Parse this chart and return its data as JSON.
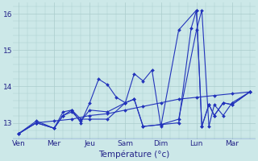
{
  "xlabel": "Température (°c)",
  "background_color": "#cce8e8",
  "grid_color": "#aacccc",
  "line_color": "#2233bb",
  "x_tick_labels": [
    "Ven",
    "Mer",
    "Jeu",
    "Sam",
    "Dim",
    "Lun",
    "Mar"
  ],
  "x_tick_positions": [
    0,
    2,
    4,
    6,
    8,
    10,
    12
  ],
  "xlim": [
    -0.3,
    13.3
  ],
  "ylim": [
    12.55,
    16.3
  ],
  "yticks": [
    13,
    14,
    15,
    16
  ],
  "series": [
    {
      "x": [
        0,
        1,
        2,
        3,
        4,
        5,
        6,
        7,
        8,
        9,
        10,
        11,
        12,
        13
      ],
      "y": [
        12.7,
        13.0,
        13.05,
        13.1,
        13.2,
        13.25,
        13.35,
        13.45,
        13.55,
        13.65,
        13.7,
        13.75,
        13.8,
        13.85
      ]
    },
    {
      "x": [
        0,
        1,
        2,
        2.5,
        3,
        3.5,
        4,
        5,
        6,
        6.5,
        7,
        8,
        9,
        10,
        10.3,
        10.7,
        11,
        11.5,
        12,
        13
      ],
      "y": [
        12.7,
        13.0,
        12.85,
        13.2,
        13.35,
        13.1,
        13.1,
        13.1,
        13.55,
        13.65,
        12.9,
        12.95,
        13.1,
        15.55,
        16.1,
        12.9,
        13.5,
        13.2,
        13.55,
        13.85
      ]
    },
    {
      "x": [
        0,
        1,
        2,
        2.5,
        3,
        3.5,
        4,
        4.5,
        5,
        5.5,
        6,
        6.5,
        7,
        7.5,
        8,
        9,
        10,
        10.3,
        10.7,
        11,
        11.5,
        12,
        13
      ],
      "y": [
        12.7,
        13.05,
        12.85,
        13.3,
        13.35,
        13.0,
        13.55,
        14.2,
        14.05,
        13.7,
        13.55,
        14.35,
        14.15,
        14.45,
        12.9,
        15.55,
        16.1,
        12.9,
        13.5,
        13.2,
        13.55,
        13.5,
        13.85
      ]
    },
    {
      "x": [
        0,
        1,
        2,
        2.5,
        3,
        3.5,
        4,
        5,
        6,
        6.5,
        7,
        8,
        9,
        9.7,
        10,
        10.3,
        10.7,
        11,
        11.5,
        12,
        13
      ],
      "y": [
        12.7,
        13.0,
        12.85,
        13.2,
        13.3,
        13.05,
        13.35,
        13.3,
        13.55,
        13.65,
        12.9,
        12.95,
        13.0,
        15.6,
        16.1,
        12.9,
        13.5,
        13.2,
        13.55,
        13.5,
        13.85
      ]
    }
  ]
}
